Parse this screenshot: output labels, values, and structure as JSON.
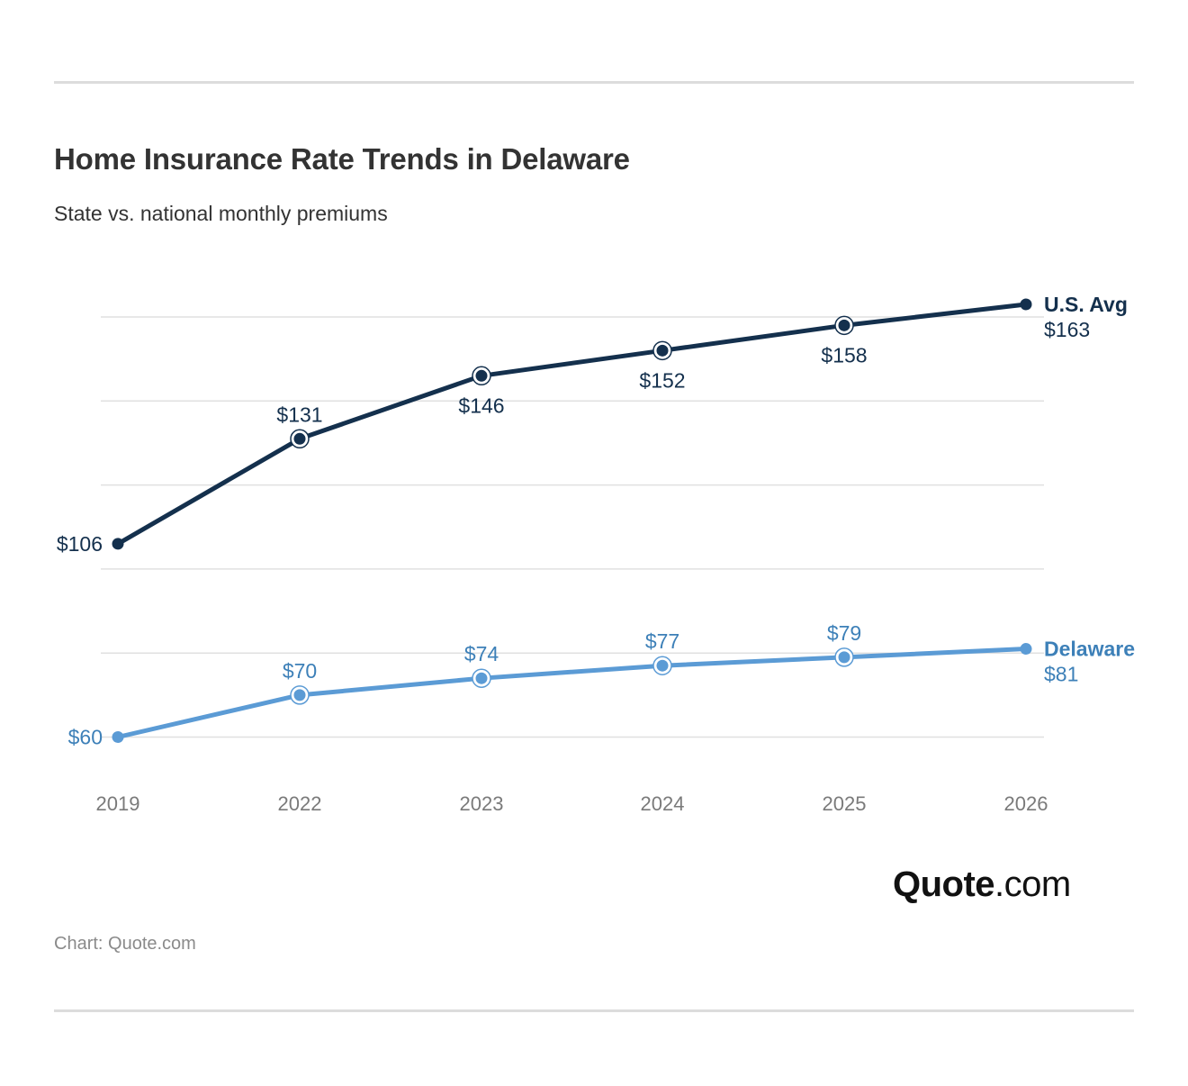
{
  "header": {
    "title": "Home Insurance Rate Trends in Delaware",
    "subtitle": "State vs. national monthly premiums"
  },
  "chart_data": {
    "type": "line",
    "categories": [
      "2019",
      "2022",
      "2023",
      "2024",
      "2025",
      "2026"
    ],
    "series": [
      {
        "name": "U.S. Avg",
        "values": [
          106,
          131,
          146,
          152,
          158,
          163
        ],
        "labels": [
          "$106",
          "$131",
          "$146",
          "$152",
          "$158",
          "$163"
        ],
        "color": "#14304d"
      },
      {
        "name": "Delaware",
        "values": [
          60,
          70,
          74,
          77,
          79,
          81
        ],
        "labels": [
          "$60",
          "$70",
          "$74",
          "$77",
          "$79",
          "$81"
        ],
        "color": "#5b9bd5"
      }
    ],
    "ylim": [
      60,
      160
    ],
    "grid": true,
    "legend": "end-of-line labels (right)",
    "xlabel": "",
    "ylabel": ""
  },
  "colors": {
    "axis_text": "#7a7a7a",
    "gridline": "#e0e0e0",
    "us_label_text": "#14304d",
    "state_label_text": "#3d80b8"
  },
  "footer": {
    "logo_bold": "Quote",
    "logo_rest": ".com",
    "source": "Chart: Quote.com"
  }
}
